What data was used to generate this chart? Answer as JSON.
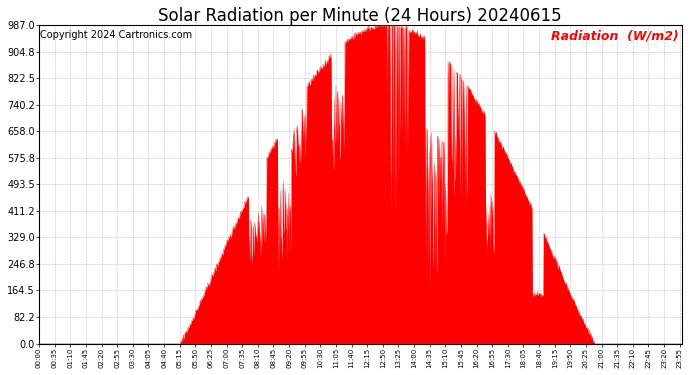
{
  "title": "Solar Radiation per Minute (24 Hours) 20240615",
  "copyright_text": "Copyright 2024 Cartronics.com",
  "ylabel": "Radiation  (W/m2)",
  "ylabel_color": "#ff0000",
  "background_color": "#ffffff",
  "plot_bg_color": "#ffffff",
  "bar_color": "#ff0000",
  "dashed_line_color": "#ff0000",
  "grid_color": "#b0b0b0",
  "ylim": [
    0.0,
    987.0
  ],
  "yticks": [
    0.0,
    82.2,
    164.5,
    246.8,
    329.0,
    411.2,
    493.5,
    575.8,
    658.0,
    740.2,
    822.5,
    904.8,
    987.0
  ],
  "ytick_labels": [
    "0.0",
    "82.2",
    "164.5",
    "246.8",
    "329.0",
    "411.2",
    "493.5",
    "575.8",
    "658.0",
    "740.2",
    "822.5",
    "904.8",
    "987.0"
  ],
  "title_fontsize": 12,
  "copyright_fontsize": 7,
  "ylabel_fontsize": 9,
  "xtick_fontsize": 5,
  "ytick_fontsize": 7,
  "xtick_interval": 35
}
